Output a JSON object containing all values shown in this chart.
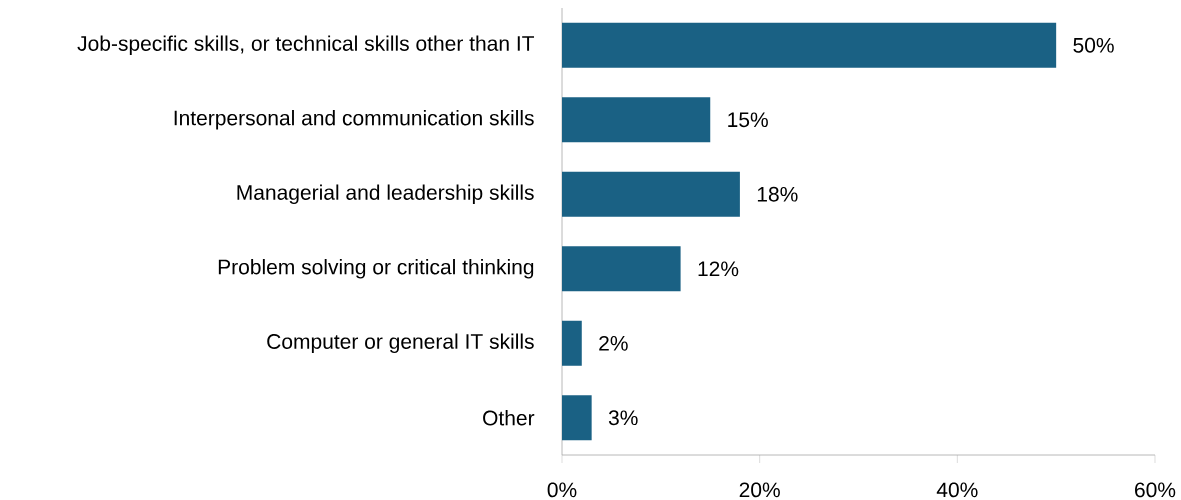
{
  "chart_data": {
    "type": "bar",
    "orientation": "horizontal",
    "categories": [
      "Job-specific skills, or technical skills other than IT",
      "Interpersonal and communication skills",
      "Managerial and leadership skills",
      "Problem solving or critical thinking",
      "Computer or general IT skills",
      "Other"
    ],
    "values": [
      50,
      15,
      18,
      12,
      2,
      3
    ],
    "value_labels": [
      "50%",
      "15%",
      "18%",
      "12%",
      "2%",
      "3%"
    ],
    "color": "#1a6184",
    "xlim": [
      0,
      60
    ],
    "xticks": [
      {
        "value": 0,
        "label": "0%"
      },
      {
        "value": 20,
        "label": "20%"
      },
      {
        "value": 40,
        "label": "40%"
      },
      {
        "value": 60,
        "label": "60%"
      }
    ]
  }
}
